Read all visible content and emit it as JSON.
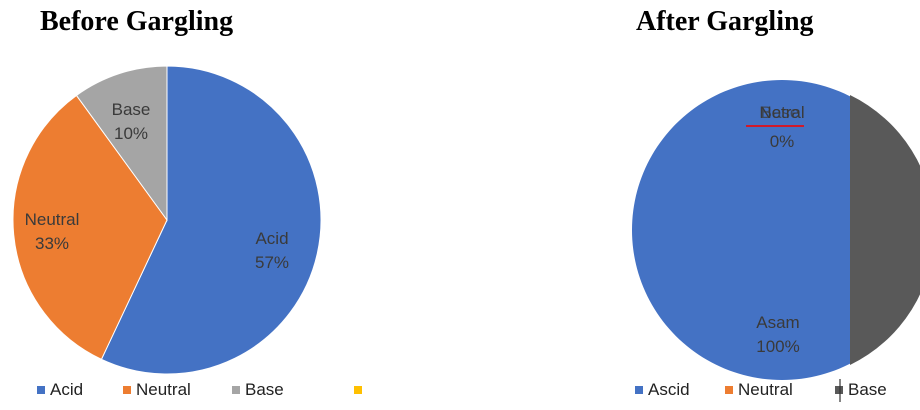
{
  "chart_data": [
    {
      "type": "pie",
      "title": "Before Gargling",
      "slices": [
        {
          "label": "Acid",
          "value": 57,
          "pct_label": "57%",
          "color": "#4472c4"
        },
        {
          "label": "Neutral",
          "value": 33,
          "pct_label": "33%",
          "color": "#ed7d31"
        },
        {
          "label": "Base",
          "value": 10,
          "pct_label": "10%",
          "color": "#a5a5a5"
        }
      ],
      "legend": [
        {
          "label": "Acid",
          "color": "#4472c4"
        },
        {
          "label": "Neutral",
          "color": "#ed7d31"
        },
        {
          "label": "Base",
          "color": "#a5a5a5"
        },
        {
          "label": "",
          "color": "#ffc000"
        }
      ],
      "legend_position": "bottom"
    },
    {
      "type": "pie",
      "title": "After Gargling",
      "slices": [
        {
          "label": "Asam",
          "value": 100,
          "pct_label": "100%",
          "color": "#4472c4"
        },
        {
          "label": "Base",
          "value": 0,
          "pct_label": "0%",
          "color": "#595959"
        }
      ],
      "overlap_label": "Netral",
      "legend": [
        {
          "label": "Ascid",
          "color": "#4472c4"
        },
        {
          "label": "Neutral",
          "color": "#ed7d31"
        },
        {
          "label": "Base",
          "color": "#595959"
        }
      ],
      "legend_position": "bottom"
    }
  ]
}
